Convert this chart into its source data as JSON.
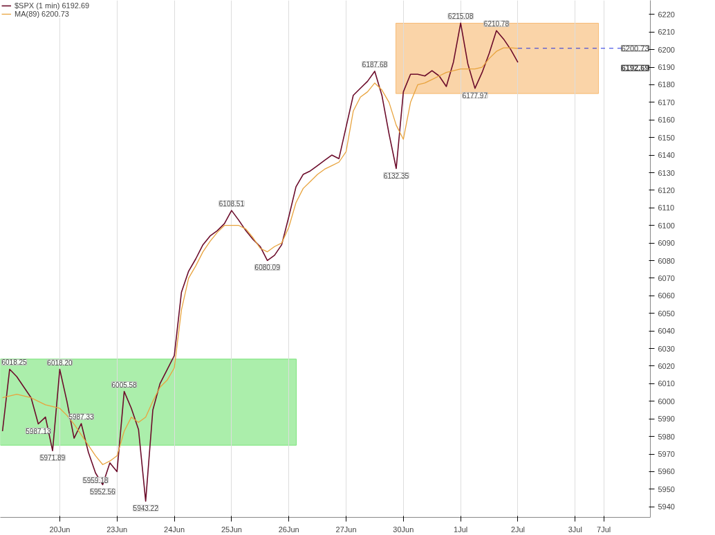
{
  "chart_data": {
    "type": "line",
    "categories": [
      null,
      null,
      null,
      null,
      null,
      null,
      null,
      null,
      "20Jun",
      null,
      null,
      null,
      null,
      null,
      null,
      null,
      "23Jun",
      null,
      null,
      null,
      null,
      null,
      null,
      null,
      "24Jun",
      null,
      null,
      null,
      null,
      null,
      null,
      null,
      "25Jun",
      null,
      null,
      null,
      null,
      null,
      null,
      null,
      "26Jun",
      null,
      null,
      null,
      null,
      null,
      null,
      null,
      "27Jun",
      null,
      null,
      null,
      null,
      null,
      null,
      null,
      "30Jun",
      null,
      null,
      null,
      null,
      null,
      null,
      null,
      "1Jul",
      null,
      null,
      null,
      null,
      null,
      null,
      null,
      "2Jul",
      null,
      null,
      null,
      null,
      null,
      null,
      null,
      "3Jul",
      null,
      null,
      null,
      "7Jul",
      null,
      null,
      null,
      null,
      null,
      null
    ],
    "series": [
      {
        "name": "$SPX (1 min) 6192.69",
        "color": "#6b0b2a",
        "values": [
          5983,
          6018.25,
          6014,
          6008,
          6002,
          5987.13,
          5991,
          5971.89,
          6018.2,
          6000,
          5979,
          5987.33,
          5971,
          5959.18,
          5952.56,
          5965,
          5960,
          6005.58,
          5996,
          5984,
          5943.22,
          5995,
          6010,
          6018,
          6026,
          6062,
          6074,
          6081,
          6089,
          6094,
          6097,
          6101,
          6108.51,
          6103,
          6097,
          6092,
          6088,
          6080.09,
          6083,
          6089,
          6105,
          6122,
          6129,
          6131,
          6134,
          6137,
          6140,
          6138,
          6156,
          6174,
          6178,
          6182,
          6187.68,
          6174,
          6152,
          6132.35,
          6176,
          6186,
          6186,
          6185,
          6188,
          6185,
          6179,
          6193,
          6215.08,
          6192,
          6177.97,
          6187,
          6198,
          6210.78,
          6206,
          6200,
          6192.69,
          null,
          null,
          null,
          null,
          null,
          null,
          null,
          null,
          null,
          null,
          null,
          null,
          null,
          null,
          null,
          null,
          null,
          null
        ]
      },
      {
        "name": "MA(89) 6200.73",
        "color": "#e8a33d",
        "values": [
          6002,
          6003,
          6004,
          6003,
          6002,
          6000,
          5998,
          5997,
          5996,
          5992,
          5987,
          5981,
          5975,
          5969,
          5964,
          5966,
          5969,
          5983,
          5991,
          5988,
          5991,
          6000,
          6008,
          6012,
          6019,
          6052,
          6070,
          6077,
          6085,
          6091,
          6096,
          6100,
          6100,
          6100,
          6098,
          6093,
          6087,
          6085,
          6088,
          6090,
          6099,
          6113,
          6121,
          6125,
          6129,
          6132,
          6134,
          6136,
          6142,
          6165,
          6173,
          6176,
          6181,
          6177,
          6170,
          6157,
          6149,
          6170,
          6180,
          6181,
          6183,
          6185,
          6187,
          6188,
          6189,
          6189,
          6189,
          6190,
          6195,
          6199,
          6201,
          6201,
          6200.73,
          null,
          null,
          null,
          null,
          null,
          null,
          null,
          null,
          null,
          null,
          null,
          null,
          null,
          null,
          null,
          null,
          null,
          null
        ]
      }
    ],
    "ylim": [
      5934,
      6228
    ],
    "yticks": [
      5940,
      5950,
      5960,
      5970,
      5980,
      5990,
      6000,
      6010,
      6020,
      6030,
      6040,
      6050,
      6060,
      6070,
      6080,
      6090,
      6100,
      6110,
      6120,
      6130,
      6140,
      6150,
      6160,
      6170,
      6180,
      6190,
      6200,
      6210,
      6220
    ],
    "grid": "x",
    "legend": "top left",
    "line_style": "solid",
    "bands": [
      {
        "axis": "y",
        "from": 5975,
        "to": 6024,
        "color": "#66e066"
      },
      {
        "axis": "y",
        "from": 6175,
        "to": 6215,
        "color": "#f5b060"
      }
    ],
    "ref_lines": [
      {
        "axis": "y",
        "value": 6200.73,
        "label": "6200.73",
        "color": "#2030e0",
        "line_style": "dashed"
      }
    ],
    "annotations": [
      {
        "text": "6018.25",
        "y": 6018.25
      },
      {
        "text": "6018.20",
        "y": 6018.2
      },
      {
        "text": "5987.13",
        "y": 5987.13
      },
      {
        "text": "5971.89",
        "y": 5971.89
      },
      {
        "text": "5987.33",
        "y": 5987.33
      },
      {
        "text": "5959.18",
        "y": 5959.18
      },
      {
        "text": "5952.56",
        "y": 5952.56
      },
      {
        "text": "6005.58",
        "y": 6005.58
      },
      {
        "text": "5943.22",
        "y": 5943.22
      },
      {
        "text": "6108.51",
        "y": 6108.51
      },
      {
        "text": "6080.09",
        "y": 6080.09
      },
      {
        "text": "6187.68",
        "y": 6187.68
      },
      {
        "text": "6132.35",
        "y": 6132.35
      },
      {
        "text": "6215.08",
        "y": 6215.08
      },
      {
        "text": "6177.97",
        "y": 6177.97
      },
      {
        "text": "6210.78",
        "y": 6210.78
      },
      "6192.69"
    ]
  }
}
